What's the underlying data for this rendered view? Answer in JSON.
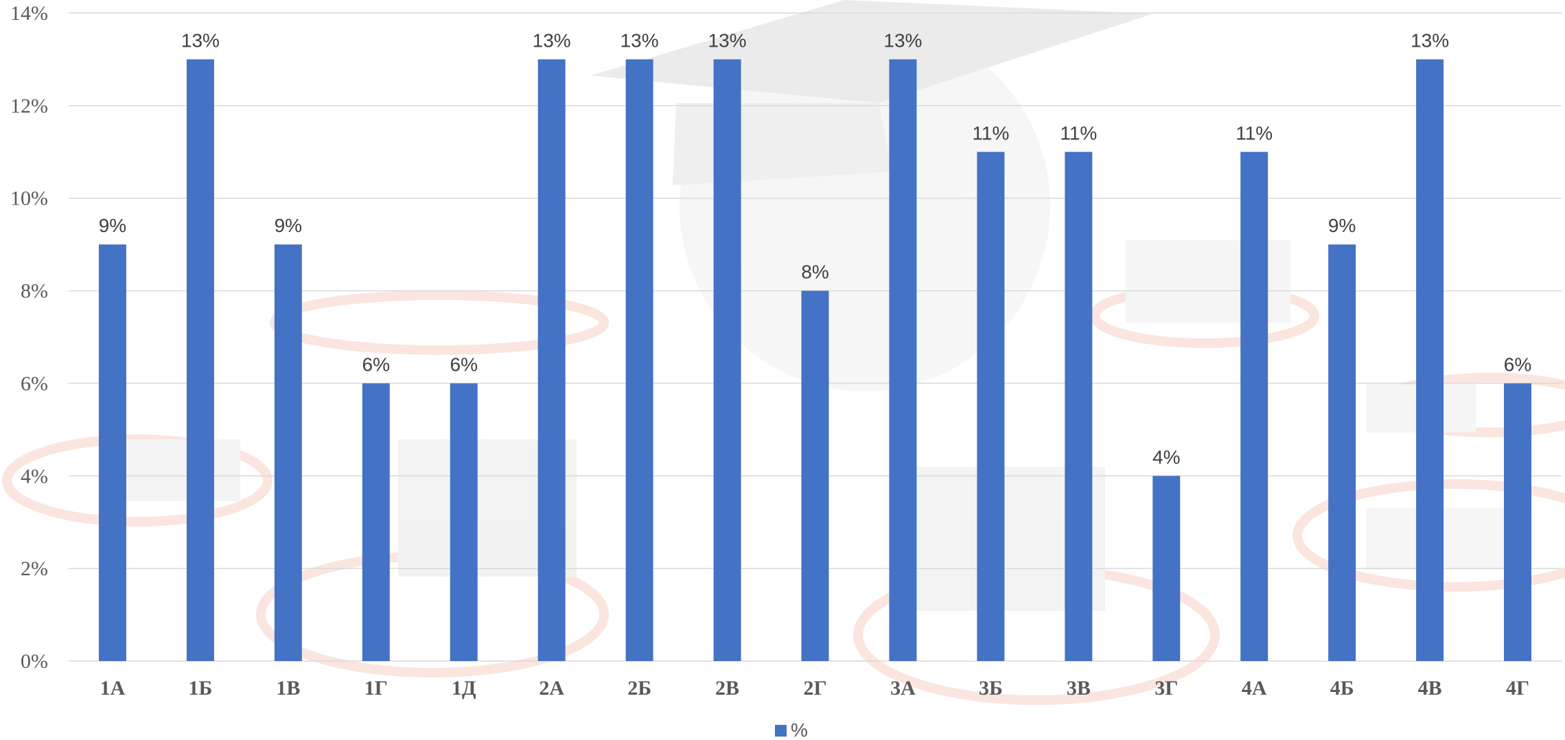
{
  "chart_data": {
    "type": "bar",
    "categories": [
      "1А",
      "1Б",
      "1В",
      "1Г",
      "1Д",
      "2А",
      "2Б",
      "2В",
      "2Г",
      "3А",
      "3Б",
      "3В",
      "3Г",
      "4А",
      "4Б",
      "4В",
      "4Г"
    ],
    "series": [
      {
        "name": "%",
        "values": [
          9,
          13,
          9,
          6,
          6,
          13,
          13,
          13,
          8,
          13,
          11,
          11,
          4,
          11,
          9,
          13,
          6
        ],
        "color": "#4472C4"
      }
    ],
    "data_label_suffix": "%",
    "y_tick_labels": [
      "0%",
      "2%",
      "4%",
      "6%",
      "8%",
      "10%",
      "12%",
      "14%"
    ],
    "ylim": [
      0,
      14
    ],
    "y_step": 2,
    "grid": true,
    "legend_position": "bottom",
    "title": "",
    "xlabel": "",
    "ylabel": ""
  },
  "colors": {
    "bar": "#4472C4",
    "grid": "#d9d9d9",
    "background_decor": "#e8e8e8",
    "decor_accent": "#f4c7b8"
  }
}
